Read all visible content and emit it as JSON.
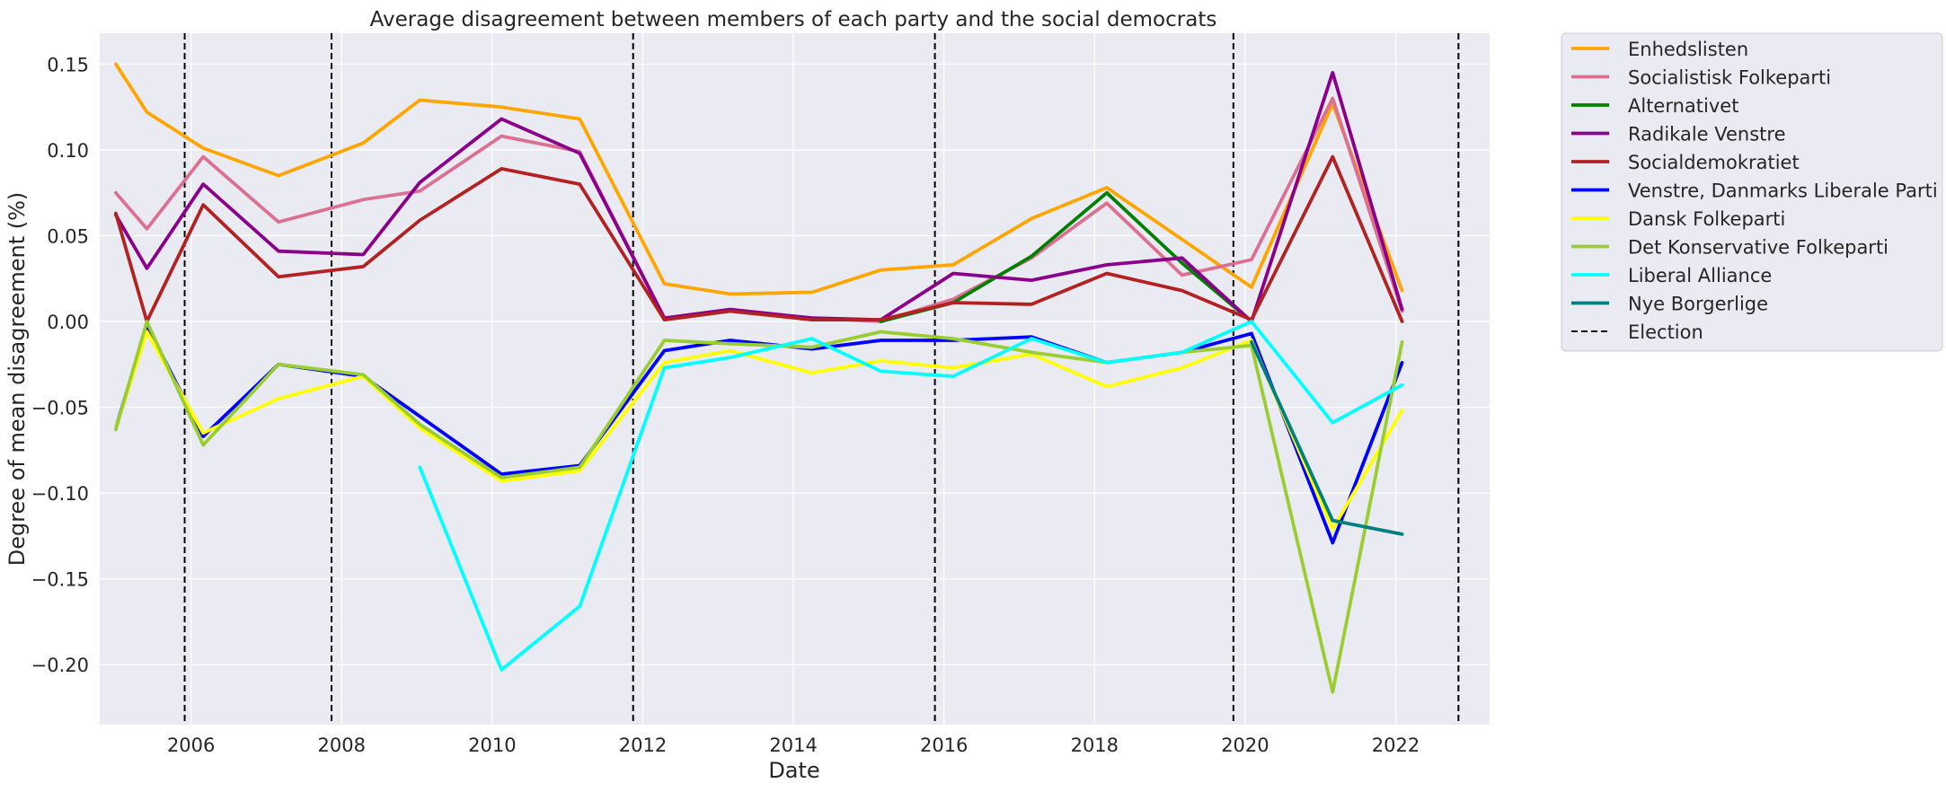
{
  "chart_data": {
    "type": "line",
    "title": "Average disagreement between members of each party and the social democrats",
    "xlabel": "Date",
    "ylabel": "Degree of mean disagreement (%)",
    "x_axis_type": "date",
    "xlim": [
      "2004-10-15",
      "2023-04-01"
    ],
    "ylim": [
      -0.235,
      0.168
    ],
    "x_ticks": [
      "2006",
      "2008",
      "2010",
      "2012",
      "2014",
      "2016",
      "2018",
      "2020",
      "2022"
    ],
    "y_ticks": [
      "0.15",
      "0.10",
      "0.05",
      "0.00",
      "−0.05",
      "−0.10",
      "−0.15",
      "−0.20"
    ],
    "y_tick_values": [
      0.15,
      0.1,
      0.05,
      0.0,
      -0.05,
      -0.1,
      -0.15,
      -0.2
    ],
    "grid": true,
    "legend_position": "outside-right-top",
    "background_color": "#eaeaf2",
    "elections": [
      "2005-12-01",
      "2007-11-13",
      "2011-11-15",
      "2015-11-18",
      "2019-11-05",
      "2022-11-01"
    ],
    "election_label": "Election",
    "series": [
      {
        "name": "Enhedslisten",
        "color": "#ffa500",
        "points": [
          [
            "2005-01-01",
            0.15
          ],
          [
            "2005-06-01",
            0.122
          ],
          [
            "2006-03-01",
            0.101
          ],
          [
            "2007-03-01",
            0.085
          ],
          [
            "2008-04-15",
            0.104
          ],
          [
            "2009-01-15",
            0.129
          ],
          [
            "2010-02-15",
            0.125
          ],
          [
            "2011-03-01",
            0.118
          ],
          [
            "2012-04-15",
            0.022
          ],
          [
            "2013-03-01",
            0.016
          ],
          [
            "2014-04-01",
            0.017
          ],
          [
            "2015-03-01",
            0.03
          ],
          [
            "2016-02-15",
            0.033
          ],
          [
            "2017-03-01",
            0.06
          ],
          [
            "2018-03-01",
            0.078
          ],
          [
            "2020-02-01",
            0.02
          ],
          [
            "2021-03-01",
            0.127
          ],
          [
            "2022-02-01",
            0.018
          ]
        ]
      },
      {
        "name": "Socialistisk Folkeparti",
        "color": "#db7093",
        "points": [
          [
            "2005-01-01",
            0.075
          ],
          [
            "2005-06-01",
            0.054
          ],
          [
            "2006-03-01",
            0.096
          ],
          [
            "2007-03-01",
            0.058
          ],
          [
            "2008-04-15",
            0.071
          ],
          [
            "2009-01-15",
            0.076
          ],
          [
            "2010-02-15",
            0.108
          ],
          [
            "2011-03-01",
            0.099
          ],
          [
            "2012-04-15",
            0.002
          ],
          [
            "2013-03-01",
            0.007
          ],
          [
            "2014-04-01",
            0.002
          ],
          [
            "2015-03-01",
            0.0
          ],
          [
            "2016-02-15",
            0.013
          ],
          [
            "2017-03-01",
            0.037
          ],
          [
            "2018-03-01",
            0.069
          ],
          [
            "2019-03-01",
            0.027
          ],
          [
            "2020-02-01",
            0.036
          ],
          [
            "2021-03-01",
            0.13
          ],
          [
            "2022-02-01",
            0.006
          ]
        ]
      },
      {
        "name": "Alternativet",
        "color": "#008000",
        "points": [
          [
            "2015-03-01",
            0.0
          ],
          [
            "2016-02-15",
            0.011
          ],
          [
            "2017-03-01",
            0.038
          ],
          [
            "2018-03-01",
            0.075
          ],
          [
            "2019-03-01",
            0.034
          ],
          [
            "2020-02-01",
            0.0
          ]
        ]
      },
      {
        "name": "Radikale Venstre",
        "color": "#8b008b",
        "points": [
          [
            "2005-01-01",
            0.062
          ],
          [
            "2005-06-01",
            0.031
          ],
          [
            "2006-03-01",
            0.08
          ],
          [
            "2007-03-01",
            0.041
          ],
          [
            "2008-04-15",
            0.039
          ],
          [
            "2009-01-15",
            0.081
          ],
          [
            "2010-02-15",
            0.118
          ],
          [
            "2011-03-01",
            0.098
          ],
          [
            "2012-04-15",
            0.002
          ],
          [
            "2013-03-01",
            0.007
          ],
          [
            "2014-04-01",
            0.002
          ],
          [
            "2015-03-01",
            0.001
          ],
          [
            "2016-02-15",
            0.028
          ],
          [
            "2017-03-01",
            0.024
          ],
          [
            "2018-03-01",
            0.033
          ],
          [
            "2019-03-01",
            0.037
          ],
          [
            "2020-02-01",
            0.0
          ],
          [
            "2021-03-01",
            0.145
          ],
          [
            "2022-02-01",
            0.007
          ]
        ]
      },
      {
        "name": "Socialdemokratiet",
        "color": "#b22222",
        "points": [
          [
            "2005-01-01",
            0.063
          ],
          [
            "2005-06-01",
            0.0
          ],
          [
            "2006-03-01",
            0.068
          ],
          [
            "2007-03-01",
            0.026
          ],
          [
            "2008-04-15",
            0.032
          ],
          [
            "2009-01-15",
            0.059
          ],
          [
            "2010-02-15",
            0.089
          ],
          [
            "2011-03-01",
            0.08
          ],
          [
            "2012-04-15",
            0.001
          ],
          [
            "2013-03-01",
            0.006
          ],
          [
            "2014-04-01",
            0.001
          ],
          [
            "2015-03-01",
            0.001
          ],
          [
            "2016-02-15",
            0.011
          ],
          [
            "2017-03-01",
            0.01
          ],
          [
            "2018-03-01",
            0.028
          ],
          [
            "2019-03-01",
            0.018
          ],
          [
            "2020-02-01",
            0.001
          ],
          [
            "2021-03-01",
            0.096
          ],
          [
            "2022-02-01",
            0.0
          ]
        ]
      },
      {
        "name": "Venstre, Danmarks Liberale Parti",
        "color": "#0000ff",
        "points": [
          [
            "2005-01-01",
            -0.062
          ],
          [
            "2005-06-01",
            -0.002
          ],
          [
            "2006-03-01",
            -0.067
          ],
          [
            "2007-03-01",
            -0.025
          ],
          [
            "2008-04-15",
            -0.032
          ],
          [
            "2010-02-15",
            -0.089
          ],
          [
            "2011-03-01",
            -0.084
          ],
          [
            "2012-04-15",
            -0.017
          ],
          [
            "2013-03-01",
            -0.011
          ],
          [
            "2014-04-01",
            -0.016
          ],
          [
            "2015-03-01",
            -0.011
          ],
          [
            "2016-02-15",
            -0.011
          ],
          [
            "2017-03-01",
            -0.009
          ],
          [
            "2018-03-01",
            -0.024
          ],
          [
            "2019-03-01",
            -0.018
          ],
          [
            "2020-02-01",
            -0.007
          ],
          [
            "2021-03-01",
            -0.129
          ],
          [
            "2022-02-01",
            -0.024
          ]
        ]
      },
      {
        "name": "Dansk Folkeparti",
        "color": "#ffff00",
        "points": [
          [
            "2005-01-01",
            -0.062
          ],
          [
            "2005-06-01",
            -0.006
          ],
          [
            "2006-03-01",
            -0.065
          ],
          [
            "2007-03-01",
            -0.045
          ],
          [
            "2008-04-15",
            -0.032
          ],
          [
            "2009-01-15",
            -0.062
          ],
          [
            "2010-02-15",
            -0.093
          ],
          [
            "2011-03-01",
            -0.087
          ],
          [
            "2012-04-15",
            -0.024
          ],
          [
            "2013-03-01",
            -0.017
          ],
          [
            "2014-04-01",
            -0.03
          ],
          [
            "2015-03-01",
            -0.023
          ],
          [
            "2016-02-15",
            -0.027
          ],
          [
            "2017-03-01",
            -0.019
          ],
          [
            "2018-03-01",
            -0.038
          ],
          [
            "2019-03-01",
            -0.027
          ],
          [
            "2020-02-01",
            -0.011
          ],
          [
            "2021-03-01",
            -0.121
          ],
          [
            "2022-02-01",
            -0.052
          ]
        ]
      },
      {
        "name": "Det Konservative Folkeparti",
        "color": "#9acd32",
        "points": [
          [
            "2005-01-01",
            -0.063
          ],
          [
            "2005-06-01",
            0.0
          ],
          [
            "2006-03-01",
            -0.072
          ],
          [
            "2007-03-01",
            -0.025
          ],
          [
            "2008-04-15",
            -0.031
          ],
          [
            "2009-01-15",
            -0.06
          ],
          [
            "2010-02-15",
            -0.091
          ],
          [
            "2011-03-01",
            -0.085
          ],
          [
            "2012-04-15",
            -0.011
          ],
          [
            "2013-03-01",
            -0.013
          ],
          [
            "2014-04-01",
            -0.015
          ],
          [
            "2015-03-01",
            -0.006
          ],
          [
            "2016-02-15",
            -0.01
          ],
          [
            "2017-03-01",
            -0.018
          ],
          [
            "2018-03-01",
            -0.024
          ],
          [
            "2019-03-01",
            -0.018
          ],
          [
            "2020-02-01",
            -0.014
          ],
          [
            "2021-03-01",
            -0.216
          ],
          [
            "2022-02-01",
            -0.012
          ]
        ]
      },
      {
        "name": "Liberal Alliance",
        "color": "#00ffff",
        "points": [
          [
            "2009-01-15",
            -0.085
          ],
          [
            "2010-02-15",
            -0.203
          ],
          [
            "2011-03-01",
            -0.166
          ],
          [
            "2012-04-15",
            -0.027
          ],
          [
            "2013-03-01",
            -0.021
          ],
          [
            "2014-04-01",
            -0.01
          ],
          [
            "2015-03-01",
            -0.029
          ],
          [
            "2016-02-15",
            -0.032
          ],
          [
            "2017-03-01",
            -0.01
          ],
          [
            "2018-03-01",
            -0.024
          ],
          [
            "2019-03-01",
            -0.018
          ],
          [
            "2020-02-01",
            0.0
          ],
          [
            "2021-03-01",
            -0.059
          ],
          [
            "2022-02-01",
            -0.037
          ]
        ]
      },
      {
        "name": "Nye Borgerlige",
        "color": "#008080",
        "points": [
          [
            "2020-02-01",
            -0.012
          ],
          [
            "2021-03-01",
            -0.116
          ],
          [
            "2022-02-01",
            -0.124
          ]
        ]
      }
    ]
  }
}
